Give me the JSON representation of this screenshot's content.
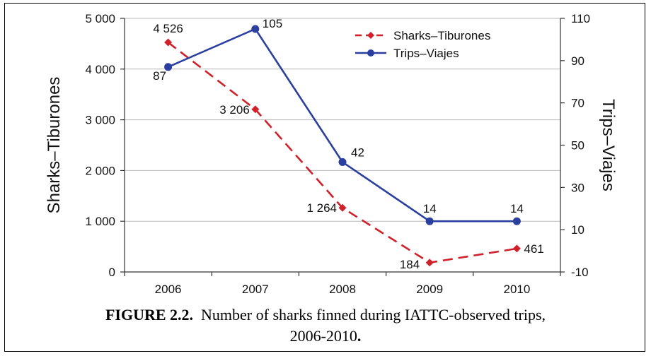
{
  "caption": {
    "label": "FIGURE 2.2.",
    "text": "Number of sharks finned during IATTC-observed trips,",
    "line2": "2006-2010",
    "end": "."
  },
  "chart_data": {
    "type": "line",
    "x": [
      "2006",
      "2007",
      "2008",
      "2009",
      "2010"
    ],
    "series": [
      {
        "name": "Sharks–Tiburones",
        "axis": "left",
        "values": [
          4526,
          3206,
          1264,
          184,
          461
        ],
        "labels": [
          "4 526",
          "3 206",
          "1 264",
          "184",
          "461"
        ],
        "color": "#d0202a",
        "style": "dashed",
        "marker": "diamond"
      },
      {
        "name": "Trips–Viajes",
        "axis": "right",
        "values": [
          87,
          105,
          42,
          14,
          14
        ],
        "labels": [
          "87",
          "105",
          "42",
          "14",
          "14"
        ],
        "color": "#2b3f9e",
        "style": "solid",
        "marker": "circle"
      }
    ],
    "ylabel_left": "Sharks–Tiburones",
    "ylabel_right": "Trips–Viajes",
    "ylim_left": [
      0,
      5000
    ],
    "ylim_right": [
      -10,
      110
    ],
    "yticks_left": [
      0,
      1000,
      2000,
      3000,
      4000,
      5000
    ],
    "yticks_left_labels": [
      "0",
      "1 000",
      "2 000",
      "3 000",
      "4 000",
      "5 000"
    ],
    "yticks_right": [
      -10,
      10,
      30,
      50,
      70,
      90,
      110
    ],
    "yticks_right_labels": [
      "-10",
      "10",
      "30",
      "50",
      "70",
      "90",
      "110"
    ],
    "grid": true,
    "legend_position": "top-right"
  }
}
